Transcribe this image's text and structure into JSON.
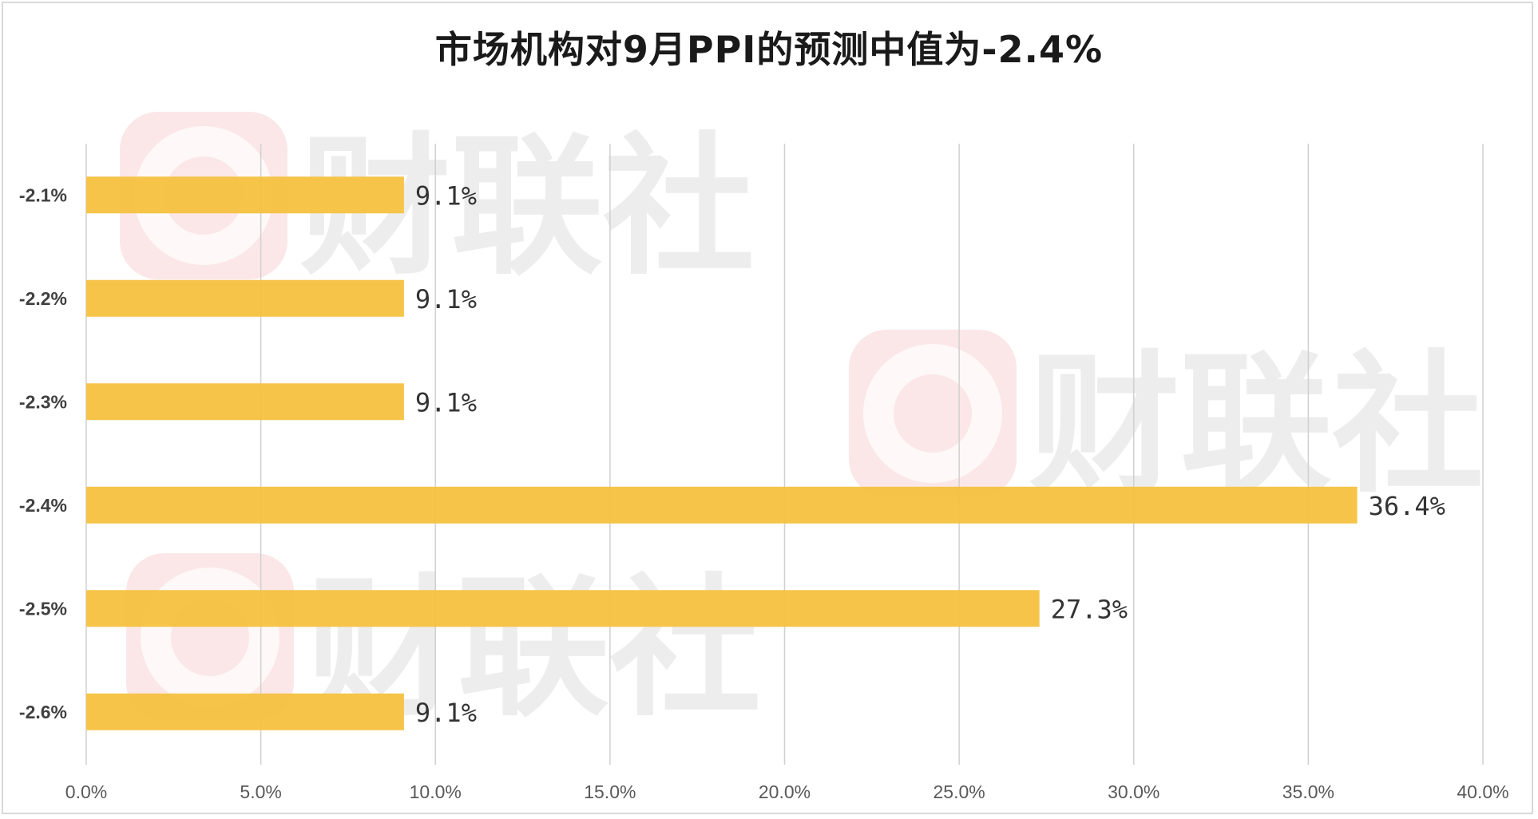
{
  "title": "市场机构对9月PPI的预测中值为-2.4%",
  "watermark": {
    "text": "财联社",
    "logo_icon": "c-circle-logo-icon",
    "logo_color": "#f4c0c0",
    "text_color": "#d9d9d9"
  },
  "colors": {
    "bar": "#f5c242",
    "gridline": "#d0d0d0",
    "axis_text": "#595959"
  },
  "chart_data": {
    "type": "bar",
    "orientation": "horizontal",
    "title": "市场机构对9月PPI的预测中值为-2.4%",
    "categories": [
      "-2.1%",
      "-2.2%",
      "-2.3%",
      "-2.4%",
      "-2.5%",
      "-2.6%"
    ],
    "values": [
      9.1,
      9.1,
      9.1,
      36.4,
      27.3,
      9.1
    ],
    "data_labels": [
      "9.1%",
      "9.1%",
      "9.1%",
      "36.4%",
      "27.3%",
      "9.1%"
    ],
    "x_ticks": [
      "0.0%",
      "5.0%",
      "10.0%",
      "15.0%",
      "20.0%",
      "25.0%",
      "30.0%",
      "35.0%",
      "40.0%"
    ],
    "xlim": [
      0,
      40
    ],
    "x_tick_step": 5,
    "xlabel": "",
    "ylabel": "",
    "grid": "vertical",
    "legend": "none"
  }
}
